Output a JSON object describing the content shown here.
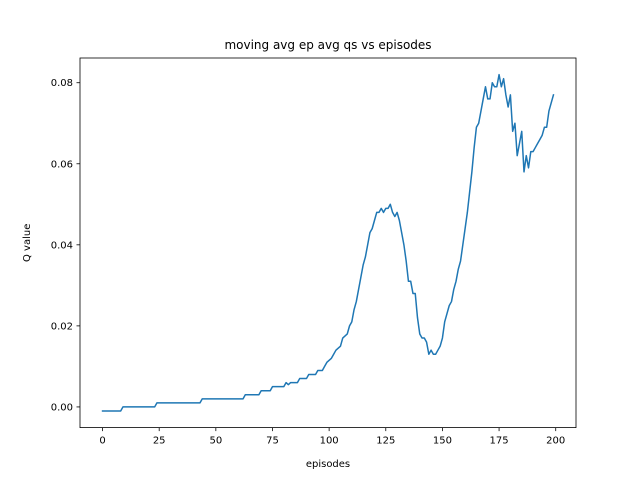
{
  "chart_data": {
    "type": "line",
    "title": "moving avg ep avg qs vs episodes",
    "xlabel": "episodes",
    "ylabel": "Q value",
    "xlim": [
      -9.95,
      208.95
    ],
    "ylim": [
      -0.0051,
      0.0861
    ],
    "xticks": [
      0,
      25,
      50,
      75,
      100,
      125,
      150,
      175,
      200
    ],
    "xtick_labels": [
      "0",
      "25",
      "50",
      "75",
      "100",
      "125",
      "150",
      "175",
      "200"
    ],
    "yticks": [
      0.0,
      0.02,
      0.04,
      0.06,
      0.08
    ],
    "ytick_labels": [
      "0.00",
      "0.02",
      "0.04",
      "0.06",
      "0.08"
    ],
    "grid": false,
    "legend": "none",
    "series": [
      {
        "color": "#1f77b4",
        "points": [
          [
            0,
            -0.001
          ],
          [
            2,
            -0.001
          ],
          [
            4,
            -0.001
          ],
          [
            6,
            -0.001
          ],
          [
            8,
            -0.001
          ],
          [
            9,
            0.0
          ],
          [
            12,
            0.0
          ],
          [
            15,
            0.0
          ],
          [
            18,
            0.0
          ],
          [
            21,
            0.0
          ],
          [
            23,
            0.0
          ],
          [
            24,
            0.001
          ],
          [
            27,
            0.001
          ],
          [
            30,
            0.001
          ],
          [
            33,
            0.001
          ],
          [
            36,
            0.001
          ],
          [
            39,
            0.001
          ],
          [
            43,
            0.001
          ],
          [
            44,
            0.002
          ],
          [
            48,
            0.002
          ],
          [
            52,
            0.002
          ],
          [
            56,
            0.002
          ],
          [
            60,
            0.002
          ],
          [
            62,
            0.002
          ],
          [
            63,
            0.003
          ],
          [
            66,
            0.003
          ],
          [
            69,
            0.003
          ],
          [
            70,
            0.004
          ],
          [
            74,
            0.004
          ],
          [
            75,
            0.005
          ],
          [
            78,
            0.005
          ],
          [
            80,
            0.005
          ],
          [
            81,
            0.006
          ],
          [
            82,
            0.0055
          ],
          [
            83,
            0.006
          ],
          [
            86,
            0.006
          ],
          [
            87,
            0.007
          ],
          [
            90,
            0.007
          ],
          [
            91,
            0.008
          ],
          [
            94,
            0.008
          ],
          [
            95,
            0.009
          ],
          [
            97,
            0.009
          ],
          [
            98,
            0.01
          ],
          [
            99,
            0.011
          ],
          [
            101,
            0.012
          ],
          [
            102,
            0.013
          ],
          [
            103,
            0.014
          ],
          [
            105,
            0.015
          ],
          [
            106,
            0.017
          ],
          [
            108,
            0.018
          ],
          [
            109,
            0.02
          ],
          [
            110,
            0.021
          ],
          [
            111,
            0.024
          ],
          [
            112,
            0.026
          ],
          [
            113,
            0.029
          ],
          [
            114,
            0.032
          ],
          [
            115,
            0.035
          ],
          [
            116,
            0.037
          ],
          [
            117,
            0.04
          ],
          [
            118,
            0.043
          ],
          [
            119,
            0.044
          ],
          [
            120,
            0.046
          ],
          [
            121,
            0.048
          ],
          [
            122,
            0.048
          ],
          [
            123,
            0.049
          ],
          [
            124,
            0.048
          ],
          [
            125,
            0.049
          ],
          [
            126,
            0.049
          ],
          [
            127,
            0.05
          ],
          [
            128,
            0.048
          ],
          [
            129,
            0.047
          ],
          [
            130,
            0.048
          ],
          [
            131,
            0.046
          ],
          [
            132,
            0.043
          ],
          [
            133,
            0.04
          ],
          [
            134,
            0.036
          ],
          [
            135,
            0.031
          ],
          [
            136,
            0.031
          ],
          [
            137,
            0.028
          ],
          [
            138,
            0.028
          ],
          [
            139,
            0.022
          ],
          [
            140,
            0.018
          ],
          [
            141,
            0.017
          ],
          [
            142,
            0.017
          ],
          [
            143,
            0.016
          ],
          [
            144,
            0.013
          ],
          [
            145,
            0.014
          ],
          [
            146,
            0.013
          ],
          [
            147,
            0.013
          ],
          [
            148,
            0.014
          ],
          [
            149,
            0.015
          ],
          [
            150,
            0.017
          ],
          [
            151,
            0.021
          ],
          [
            152,
            0.023
          ],
          [
            153,
            0.025
          ],
          [
            154,
            0.026
          ],
          [
            155,
            0.029
          ],
          [
            156,
            0.031
          ],
          [
            157,
            0.034
          ],
          [
            158,
            0.036
          ],
          [
            159,
            0.04
          ],
          [
            160,
            0.044
          ],
          [
            161,
            0.048
          ],
          [
            162,
            0.053
          ],
          [
            163,
            0.058
          ],
          [
            164,
            0.064
          ],
          [
            165,
            0.069
          ],
          [
            166,
            0.07
          ],
          [
            167,
            0.073
          ],
          [
            168,
            0.076
          ],
          [
            169,
            0.079
          ],
          [
            170,
            0.076
          ],
          [
            171,
            0.076
          ],
          [
            172,
            0.08
          ],
          [
            173,
            0.079
          ],
          [
            174,
            0.079
          ],
          [
            175,
            0.082
          ],
          [
            176,
            0.079
          ],
          [
            177,
            0.081
          ],
          [
            178,
            0.077
          ],
          [
            179,
            0.074
          ],
          [
            180,
            0.077
          ],
          [
            181,
            0.068
          ],
          [
            182,
            0.07
          ],
          [
            183,
            0.062
          ],
          [
            184,
            0.065
          ],
          [
            185,
            0.068
          ],
          [
            186,
            0.058
          ],
          [
            187,
            0.062
          ],
          [
            188,
            0.059
          ],
          [
            189,
            0.063
          ],
          [
            190,
            0.063
          ],
          [
            191,
            0.064
          ],
          [
            192,
            0.065
          ],
          [
            193,
            0.066
          ],
          [
            194,
            0.067
          ],
          [
            195,
            0.069
          ],
          [
            196,
            0.069
          ],
          [
            197,
            0.073
          ],
          [
            198,
            0.075
          ],
          [
            199,
            0.077
          ]
        ]
      }
    ]
  }
}
